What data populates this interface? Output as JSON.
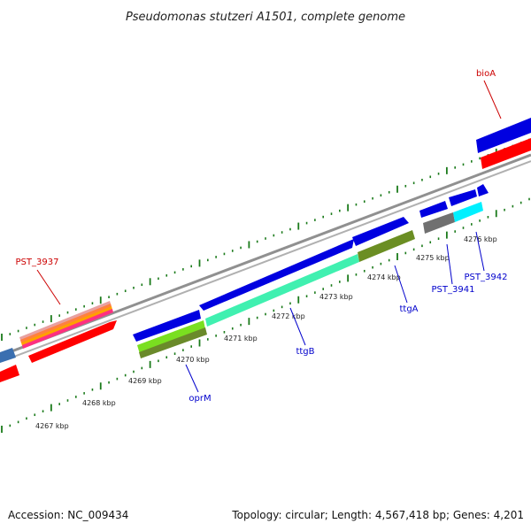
{
  "title": "Pseudomonas stutzeri A1501, complete genome",
  "footer": {
    "accession": "Accession: NC_009434",
    "summary": "Topology: circular; Length: 4,567,418 bp; Genes: 4,201"
  },
  "colors": {
    "backbone": "#808080",
    "tick": "#1a7a1a",
    "label_blue": "#0000cc",
    "label_red": "#cc0000"
  },
  "ticks": [
    {
      "label": "4267 kbp"
    },
    {
      "label": "4268 kbp"
    },
    {
      "label": "4269 kbp"
    },
    {
      "label": "4270 kbp"
    },
    {
      "label": "4271 kbp"
    },
    {
      "label": "4272 kbp"
    },
    {
      "label": "4273 kbp"
    },
    {
      "label": "4274 kbp"
    },
    {
      "label": "4275 kbp"
    },
    {
      "label": "4276 kbp"
    }
  ],
  "gene_labels": [
    {
      "name": "bioA",
      "color": "#cc0000"
    },
    {
      "name": "PST_3937",
      "color": "#cc0000"
    },
    {
      "name": "oprM",
      "color": "#0000cc"
    },
    {
      "name": "ttgB",
      "color": "#0000cc"
    },
    {
      "name": "ttgA",
      "color": "#0000cc"
    },
    {
      "name": "PST_3941",
      "color": "#0000cc"
    },
    {
      "name": "PST_3942",
      "color": "#0000cc"
    }
  ]
}
